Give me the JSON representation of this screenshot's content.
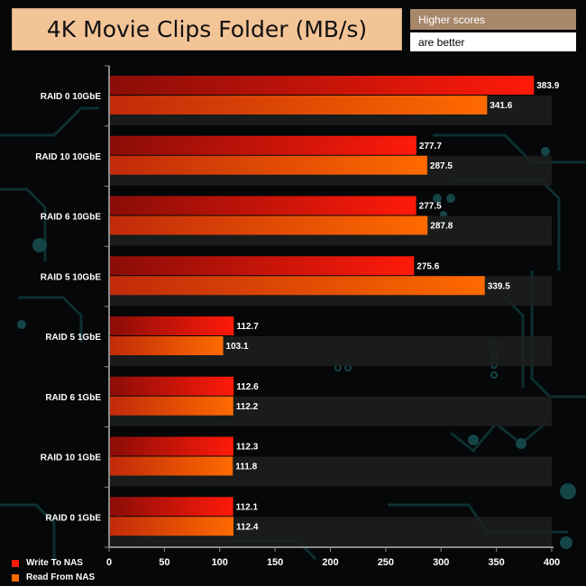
{
  "header": {
    "title": "4K Movie Clips Folder (MB/s)",
    "note_line1": "Higher scores",
    "note_line2": "are better"
  },
  "colors": {
    "write_dark": "#8a0d08",
    "write_light": "#ff1a0a",
    "read_dark": "#c02a0a",
    "read_light": "#ff6a00",
    "band": "#1f1f1f",
    "background": "#050708",
    "circuit": "#103a3c"
  },
  "chart_data": {
    "type": "bar",
    "orientation": "horizontal",
    "title": "4K Movie Clips Folder (MB/s)",
    "categories": [
      "RAID 0 10GbE",
      "RAID 10 10GbE",
      "RAID 6 10GbE",
      "RAID 5 10GbE",
      "RAID 5 1GbE",
      "RAID 6 1GbE",
      "RAID 10 1GbE",
      "RAID 0 1GbE"
    ],
    "series": [
      {
        "name": "Write To NAS",
        "values": [
          383.9,
          277.7,
          277.5,
          275.6,
          112.7,
          112.6,
          112.3,
          112.1
        ]
      },
      {
        "name": "Read From NAS",
        "values": [
          341.6,
          287.5,
          287.8,
          339.5,
          103.1,
          112.2,
          111.8,
          112.4
        ]
      }
    ],
    "xlim": [
      0,
      400
    ],
    "xticks": [
      0,
      50,
      100,
      150,
      200,
      250,
      300,
      350,
      400
    ],
    "grid": false,
    "legend_position": "bottom-left"
  }
}
